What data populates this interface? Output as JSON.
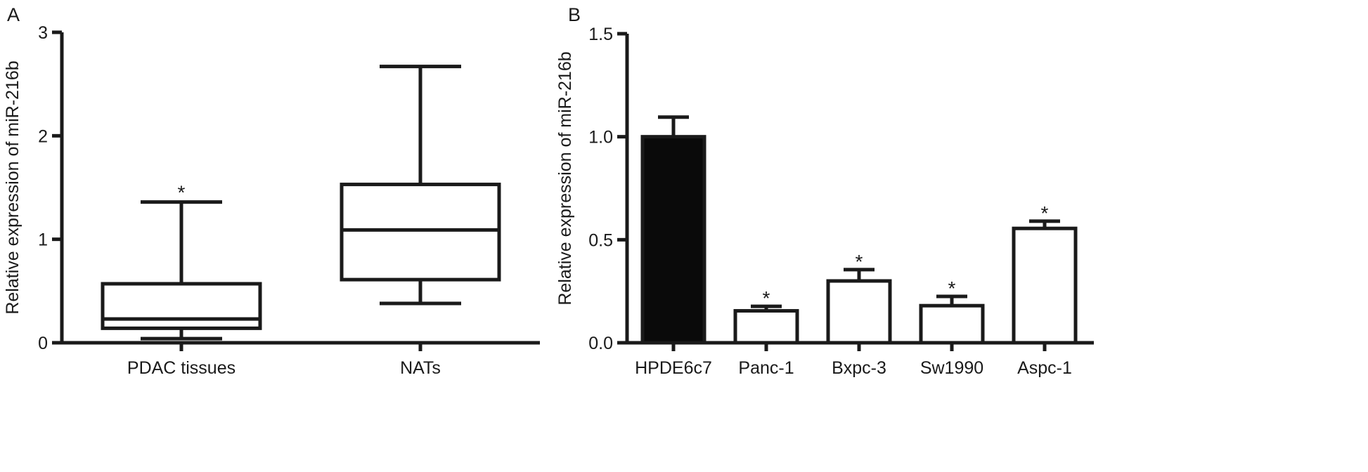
{
  "chart_data": [
    {
      "panel": "A",
      "type": "box",
      "ylabel": "Relative expression of miR-216b",
      "ylim": [
        0,
        3
      ],
      "yticks": [
        0,
        1,
        2,
        3
      ],
      "categories": [
        "PDAC tissues",
        "NATs"
      ],
      "boxes": [
        {
          "category": "PDAC tissues",
          "min": 0.04,
          "q1": 0.14,
          "median": 0.23,
          "q3": 0.57,
          "max": 1.36,
          "annotation": "*"
        },
        {
          "category": "NATs",
          "min": 0.38,
          "q1": 0.61,
          "median": 1.09,
          "q3": 1.53,
          "max": 2.67,
          "annotation": ""
        }
      ]
    },
    {
      "panel": "B",
      "type": "bar",
      "ylabel": "Relative expression of miR-216b",
      "ylim": [
        0,
        1.5
      ],
      "yticks": [
        "0.0",
        "0.5",
        "1.0",
        "1.5"
      ],
      "categories": [
        "HPDE6c7",
        "Panc-1",
        "Bxpc-3",
        "Sw1990",
        "Aspc-1"
      ],
      "values": [
        1.0,
        0.155,
        0.3,
        0.18,
        0.555
      ],
      "errors": [
        0.095,
        0.022,
        0.055,
        0.045,
        0.035
      ],
      "annotations": [
        "",
        "*",
        "*",
        "*",
        "*"
      ],
      "colors": [
        "#0a0a0a",
        "#ffffff",
        "#ffffff",
        "#ffffff",
        "#ffffff"
      ]
    }
  ]
}
